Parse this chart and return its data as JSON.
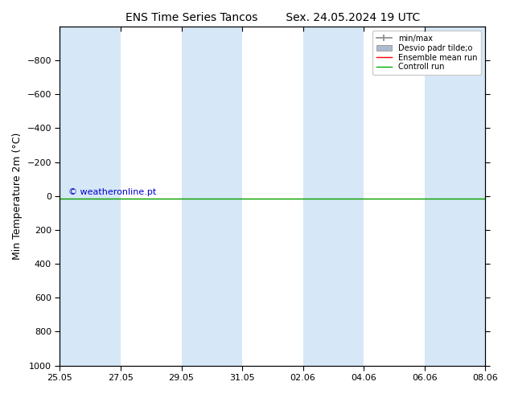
{
  "title_left": "ENS Time Series Tancos",
  "title_right": "Sex. 24.05.2024 19 UTC",
  "ylabel": "Min Temperature 2m (°C)",
  "ylim": [
    1000,
    -1000
  ],
  "yticks": [
    -800,
    -600,
    -400,
    -200,
    0,
    200,
    400,
    600,
    800,
    1000
  ],
  "xlim": [
    0,
    14
  ],
  "xtick_labels": [
    "25.05",
    "27.05",
    "29.05",
    "31.05",
    "02.06",
    "04.06",
    "06.06",
    "08.06"
  ],
  "xtick_positions": [
    0,
    2,
    4,
    6,
    8,
    10,
    12,
    14
  ],
  "shaded_bands": [
    [
      0,
      2
    ],
    [
      4,
      6
    ],
    [
      8,
      10
    ],
    [
      12,
      14
    ]
  ],
  "control_run_y": 15.0,
  "ensemble_mean_y": 15.0,
  "band_color": "#d6e8f7",
  "control_run_color": "#00aa00",
  "ensemble_mean_color": "#ff0000",
  "minmax_color": "#888888",
  "stddev_color": "#aabbcc",
  "watermark": "© weatheronline.pt",
  "watermark_color": "#0000cc",
  "legend_labels": [
    "min/max",
    "Desvio padr tilde;o",
    "Ensemble mean run",
    "Controll run"
  ],
  "legend_colors": [
    "#888888",
    "#aabbcc",
    "#ff0000",
    "#00aa00"
  ],
  "background_color": "#ffffff",
  "title_fontsize": 10,
  "axis_fontsize": 9,
  "tick_fontsize": 8
}
